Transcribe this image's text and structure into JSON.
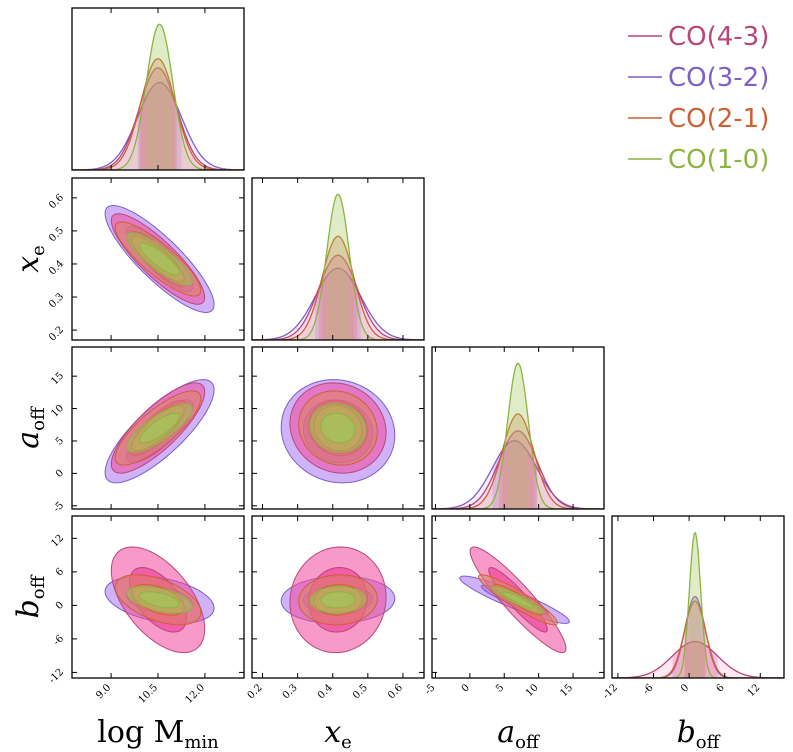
{
  "chart_data": {
    "type": "corner",
    "parameters": [
      {
        "key": "logM",
        "axis_label": "log M",
        "axis_sub": "min",
        "italic": false,
        "range": [
          7.75,
          13.25
        ],
        "ticks": [
          9.0,
          10.5,
          12.0
        ],
        "tick_labels": [
          "9.0",
          "10.5",
          "12.0"
        ]
      },
      {
        "key": "xe",
        "axis_label": "x",
        "axis_sub": "e",
        "italic": true,
        "range": [
          0.17,
          0.66
        ],
        "ticks": [
          0.2,
          0.3,
          0.4,
          0.5,
          0.6
        ],
        "tick_labels": [
          "0.2",
          "0.3",
          "0.4",
          "0.5",
          "0.6"
        ]
      },
      {
        "key": "aoff",
        "axis_label": "a",
        "axis_sub": "off",
        "italic": true,
        "range": [
          -5.5,
          19.5
        ],
        "ticks": [
          -5,
          0,
          5,
          10,
          15
        ],
        "tick_labels": [
          "-5",
          "0",
          "5",
          "10",
          "15"
        ]
      },
      {
        "key": "boff",
        "axis_label": "b",
        "axis_sub": "off",
        "italic": true,
        "range": [
          -13,
          16
        ],
        "ticks": [
          -12,
          -6,
          0,
          6,
          12
        ],
        "tick_labels": [
          "-12",
          "-6",
          "0",
          "6",
          "12"
        ]
      }
    ],
    "series": [
      {
        "name": "CO(4-3)",
        "color": "#b9467a",
        "fill": "#f0479c",
        "mean": [
          10.5,
          0.415,
          7.0,
          1.0
        ],
        "sigma": [
          0.6,
          0.055,
          2.8,
          3.8
        ],
        "corr": {
          "0-1": -0.85,
          "0-2": 0.8,
          "0-3": -0.55,
          "1-2": -0.1,
          "1-3": 0.05,
          "2-3": -0.92
        }
      },
      {
        "name": "CO(3-2)",
        "color": "#7e5fc4",
        "fill": "#a973f2",
        "mean": [
          10.55,
          0.415,
          6.5,
          1.0
        ],
        "sigma": [
          0.7,
          0.065,
          3.2,
          1.7
        ],
        "corr": {
          "0-1": -0.85,
          "0-2": 0.8,
          "0-3": -0.35,
          "1-2": -0.08,
          "1-3": 0.05,
          "2-3": -0.92
        }
      },
      {
        "name": "CO(2-1)",
        "color": "#cc6233",
        "fill": "#e08560",
        "mean": [
          10.5,
          0.415,
          7.0,
          1.0
        ],
        "sigma": [
          0.55,
          0.045,
          2.3,
          1.8
        ],
        "corr": {
          "0-1": -0.85,
          "0-2": 0.8,
          "0-3": -0.5,
          "1-2": -0.1,
          "1-3": 0.05,
          "2-3": -0.92
        }
      },
      {
        "name": "CO(1-0)",
        "color": "#8cb440",
        "fill": "#a3c55a",
        "mean": [
          10.55,
          0.415,
          7.0,
          1.0
        ],
        "sigma": [
          0.42,
          0.032,
          1.5,
          0.95
        ],
        "corr": {
          "0-1": -0.85,
          "0-2": 0.8,
          "0-3": -0.5,
          "1-2": -0.1,
          "1-3": 0.05,
          "2-3": -0.92
        }
      }
    ],
    "contour_levels_sigma": [
      1,
      2
    ],
    "legend": {
      "position": "top-right"
    }
  }
}
